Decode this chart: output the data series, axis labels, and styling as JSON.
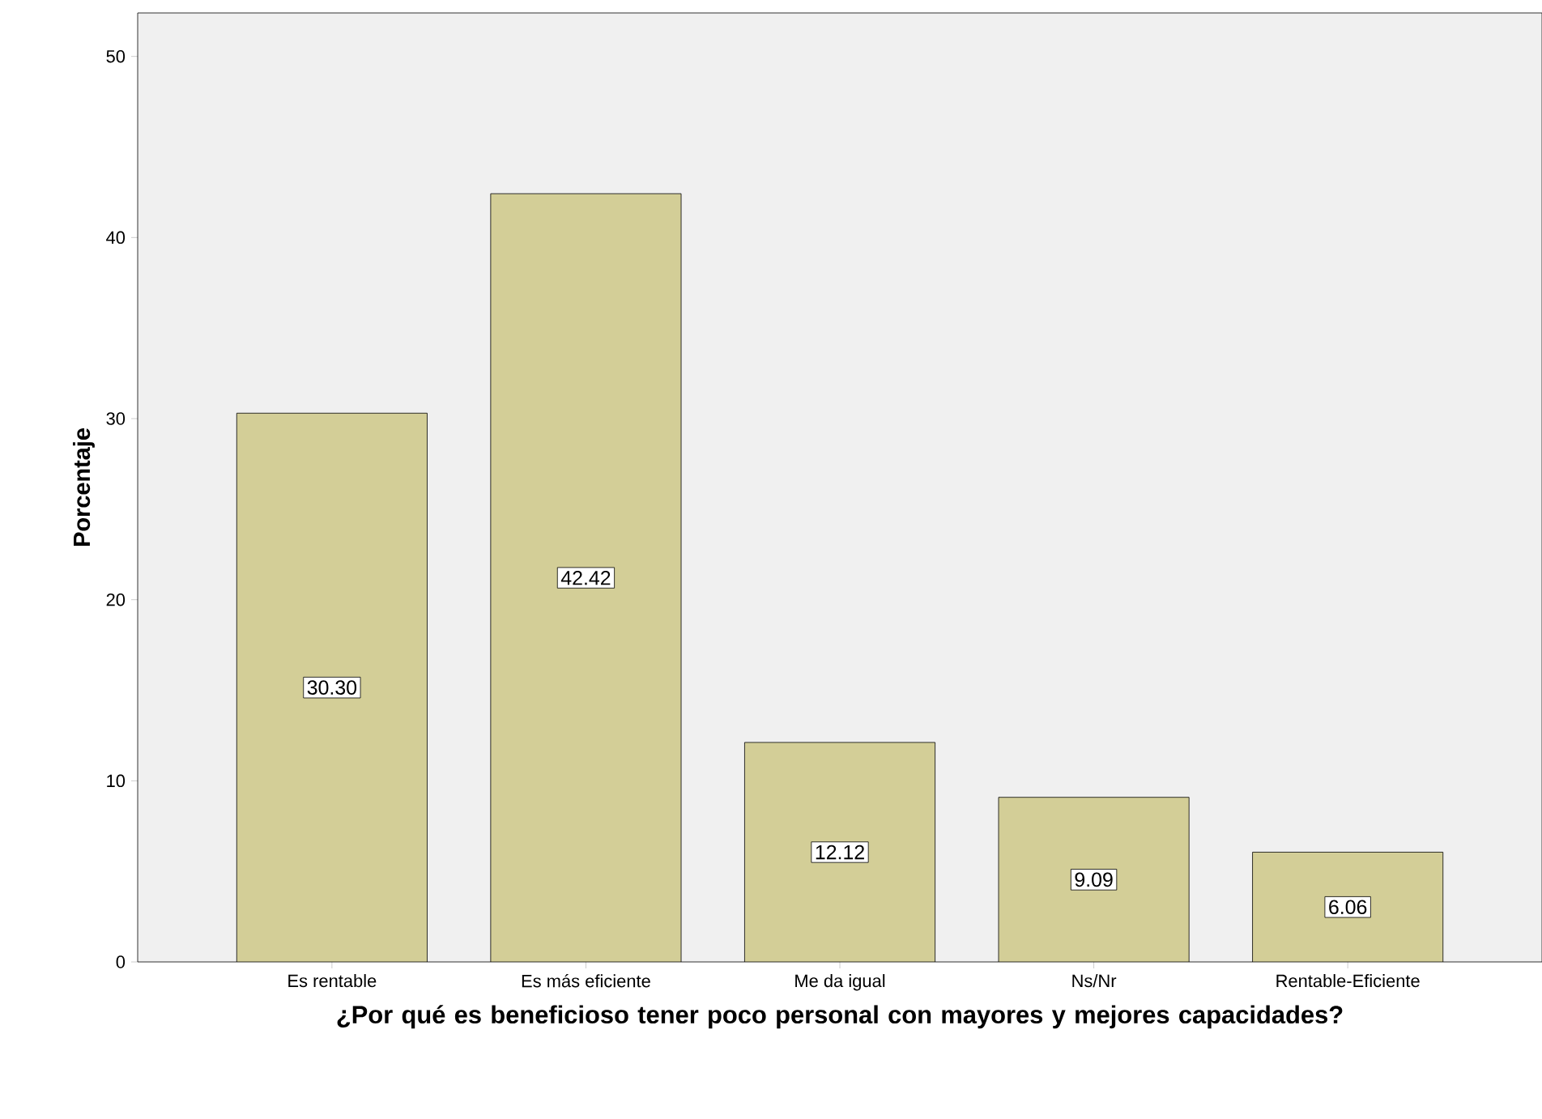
{
  "chart_data": {
    "type": "bar",
    "xlabel": "¿Por qué es beneficioso tener poco personal con mayores y mejores capacidades?",
    "ylabel": "Porcentaje",
    "categories": [
      "Es rentable",
      "Es más eficiente",
      "Me da igual",
      "Ns/Nr",
      "Rentable-Eficiente"
    ],
    "values": [
      30.3,
      42.42,
      12.12,
      9.09,
      6.06
    ],
    "value_labels": [
      "30.30",
      "42.42",
      "12.12",
      "9.09",
      "6.06"
    ],
    "color": "#d3ce97",
    "ylim": [
      0,
      52.4
    ],
    "yticks": [
      0,
      10,
      20,
      30,
      40,
      50
    ],
    "grid": false
  }
}
